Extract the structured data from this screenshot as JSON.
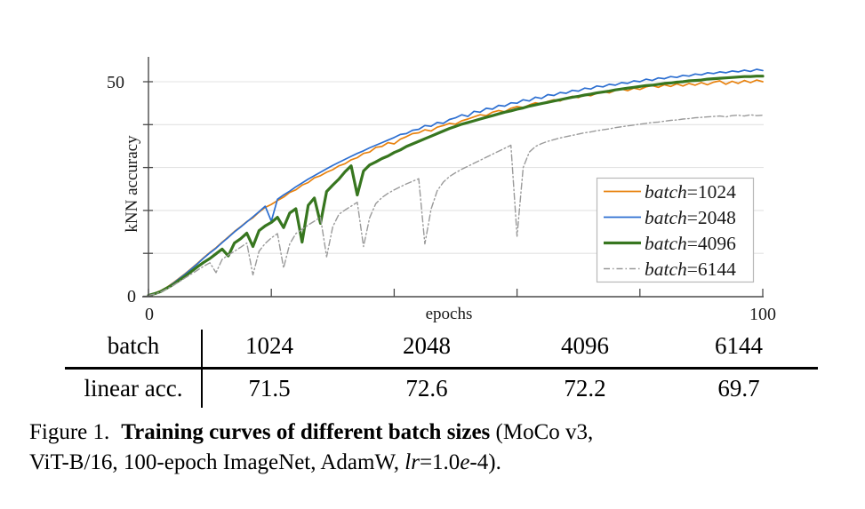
{
  "figure": {
    "caption": {
      "figure_label": "Figure 1.",
      "title_bold": "Training curves of different batch sizes",
      "line1_rest": "(MoCo v3,",
      "line2_pre": "ViT-B/16, 100-epoch ImageNet, AdamW, ",
      "lr_italic": "lr",
      "eq_value": "=1.0",
      "e_italic": "e",
      "line2_end": "-4)."
    },
    "table": {
      "header_label": "batch",
      "header_values": [
        "1024",
        "2048",
        "4096",
        "6144"
      ],
      "row_label": "linear acc.",
      "row_values": [
        "71.5",
        "72.6",
        "72.2",
        "69.7"
      ]
    }
  },
  "legend": {
    "items": [
      {
        "prefix": "batch",
        "value": "=1024"
      },
      {
        "prefix": "batch",
        "value": "=2048"
      },
      {
        "prefix": "batch",
        "value": "=4096"
      },
      {
        "prefix": "batch",
        "value": "=6144"
      }
    ]
  },
  "chart_data": {
    "type": "line",
    "title": "",
    "xlabel": "epochs",
    "ylabel": "kNN accuracy",
    "xlim": [
      0,
      100
    ],
    "ylim": [
      0,
      55
    ],
    "x_step": 1,
    "grid": "horizontal",
    "grid_y": [
      10,
      20,
      30,
      40,
      50
    ],
    "xticks": [
      0,
      20,
      40,
      60,
      80,
      100
    ],
    "yticks": [
      0,
      10,
      20,
      30,
      40,
      50
    ],
    "tick_labels": {
      "x_min": "0",
      "x_max": "100",
      "y_min": "0",
      "y_max": "50"
    },
    "legend_position": "lower-right-inside",
    "colors": {
      "batch1024": "#e8820e",
      "batch2048": "#2d6fd1",
      "batch4096": "#37761f",
      "batch6144": "#9a9a9a",
      "grid": "#e3e3e3",
      "axis": "#4a4a4a"
    },
    "series": [
      {
        "name": "batch=1024",
        "color": "#e8820e",
        "style": "solid",
        "width": 1.7,
        "values": [
          0.2,
          0.7,
          1.3,
          2.1,
          3.1,
          4.2,
          5.3,
          6.5,
          7.7,
          9.0,
          10.2,
          11.3,
          12.6,
          13.8,
          15.1,
          16.2,
          17.4,
          18.3,
          19.6,
          20.7,
          21.4,
          22.3,
          23.1,
          24.2,
          24.8,
          25.9,
          26.5,
          27.6,
          28.1,
          28.9,
          29.5,
          30.4,
          30.9,
          31.8,
          32.3,
          33.3,
          33.6,
          34.7,
          34.9,
          35.8,
          35.5,
          36.6,
          37.2,
          37.9,
          38.1,
          38.8,
          38.5,
          39.4,
          39.8,
          40.3,
          40.1,
          40.9,
          41.3,
          41.8,
          42.3,
          42.1,
          42.9,
          43.3,
          43.0,
          43.8,
          44.2,
          44.0,
          44.6,
          45.1,
          44.8,
          45.4,
          45.8,
          45.5,
          46.2,
          46.6,
          46.3,
          47.0,
          46.7,
          47.3,
          47.7,
          47.4,
          48.0,
          48.3,
          47.9,
          48.5,
          48.2,
          48.8,
          49.1,
          48.7,
          49.3,
          48.9,
          49.5,
          49.0,
          49.6,
          49.2,
          49.8,
          49.3,
          49.9,
          50.2,
          49.4,
          50.1,
          49.6,
          50.3,
          49.8,
          50.4,
          50.0
        ]
      },
      {
        "name": "batch=2048",
        "color": "#2d6fd1",
        "style": "solid",
        "width": 1.7,
        "values": [
          0.2,
          0.6,
          1.2,
          2.0,
          3.0,
          4.1,
          5.2,
          6.4,
          7.6,
          8.9,
          10.1,
          11.2,
          12.5,
          13.7,
          15.0,
          16.1,
          17.3,
          18.5,
          19.7,
          21.0,
          17.5,
          22.6,
          23.6,
          24.5,
          25.5,
          26.4,
          27.3,
          28.1,
          28.9,
          29.7,
          30.5,
          31.2,
          31.9,
          32.6,
          33.3,
          33.9,
          34.6,
          35.2,
          35.8,
          36.4,
          37.0,
          37.7,
          37.9,
          38.7,
          38.9,
          39.8,
          39.6,
          40.5,
          40.3,
          41.2,
          41.6,
          42.3,
          41.9,
          43.1,
          42.9,
          43.8,
          43.6,
          44.5,
          44.3,
          45.1,
          45.0,
          45.8,
          45.5,
          46.4,
          46.1,
          47.0,
          46.8,
          47.5,
          47.3,
          48.0,
          47.8,
          48.5,
          48.3,
          49.0,
          48.8,
          49.4,
          49.2,
          49.8,
          49.6,
          50.2,
          50.0,
          50.6,
          50.3,
          50.9,
          50.7,
          51.2,
          51.0,
          51.5,
          51.3,
          51.8,
          51.6,
          52.1,
          51.9,
          52.3,
          52.1,
          52.5,
          52.3,
          52.7,
          52.4,
          52.9,
          52.6
        ]
      },
      {
        "name": "batch=4096",
        "color": "#37761f",
        "style": "solid",
        "width": 3.2,
        "values": [
          0.2,
          0.6,
          1.1,
          1.9,
          2.7,
          3.7,
          4.7,
          5.8,
          6.9,
          7.9,
          8.8,
          9.9,
          11.0,
          9.4,
          12.4,
          13.4,
          14.7,
          11.6,
          15.3,
          16.4,
          17.2,
          18.4,
          16.0,
          19.4,
          20.4,
          12.6,
          21.2,
          22.9,
          17.0,
          24.4,
          25.9,
          27.3,
          29.0,
          30.4,
          23.6,
          29.2,
          30.6,
          31.3,
          32.1,
          32.7,
          33.5,
          34.1,
          34.9,
          35.5,
          36.1,
          36.7,
          37.3,
          37.9,
          38.5,
          39.1,
          39.6,
          40.1,
          40.5,
          40.9,
          41.3,
          41.7,
          42.1,
          42.5,
          42.9,
          43.2,
          43.6,
          43.9,
          44.3,
          44.6,
          44.9,
          45.2,
          45.5,
          45.8,
          46.1,
          46.4,
          46.6,
          46.9,
          47.1,
          47.4,
          47.6,
          47.8,
          48.1,
          48.3,
          48.5,
          48.7,
          48.9,
          49.1,
          49.2,
          49.4,
          49.6,
          49.7,
          49.9,
          50.0,
          50.2,
          50.3,
          50.4,
          50.6,
          50.7,
          50.8,
          50.9,
          51.0,
          51.1,
          51.2,
          51.2,
          51.3,
          51.3
        ]
      },
      {
        "name": "batch=6144",
        "color": "#9a9a9a",
        "style": "dashdot",
        "width": 1.4,
        "values": [
          0.2,
          0.5,
          1.0,
          1.7,
          2.5,
          3.4,
          4.3,
          5.2,
          6.1,
          7.0,
          7.8,
          5.5,
          8.6,
          9.6,
          10.5,
          11.4,
          12.4,
          5.0,
          10.5,
          12.3,
          13.6,
          14.6,
          6.6,
          12.2,
          14.6,
          15.6,
          16.6,
          17.5,
          18.4,
          9.2,
          16.2,
          19.1,
          20.1,
          21.0,
          21.9,
          11.6,
          18.3,
          21.6,
          23.0,
          24.0,
          24.8,
          25.5,
          26.2,
          26.8,
          27.4,
          12.2,
          20.3,
          24.6,
          26.6,
          27.9,
          28.8,
          29.6,
          30.3,
          31.0,
          31.7,
          32.4,
          33.1,
          33.8,
          34.5,
          35.2,
          14.0,
          30.0,
          33.6,
          34.9,
          35.6,
          36.1,
          36.5,
          36.9,
          37.2,
          37.5,
          37.8,
          38.1,
          38.3,
          38.6,
          38.8,
          39.0,
          39.3,
          39.5,
          39.7,
          39.9,
          40.1,
          40.3,
          40.5,
          40.6,
          40.8,
          41.0,
          41.1,
          41.3,
          41.4,
          41.6,
          41.7,
          41.8,
          41.9,
          42.0,
          41.8,
          42.1,
          42.2,
          42.0,
          42.3,
          42.1,
          42.2
        ]
      }
    ]
  }
}
